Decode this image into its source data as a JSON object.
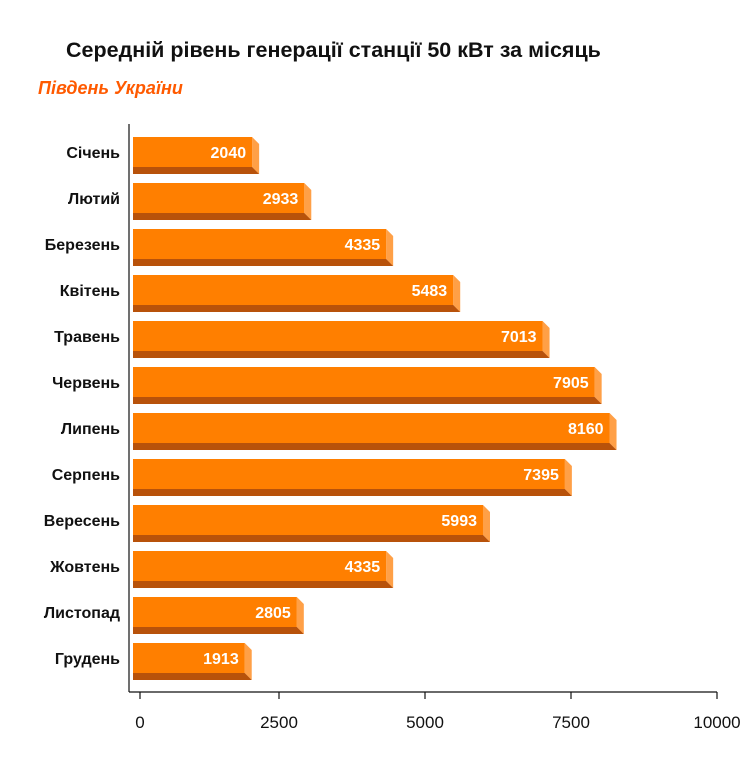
{
  "title": "Середній рівень генерації станції 50 кВт за місяць",
  "subtitle": "Південь України",
  "colors": {
    "subtitle": "#ff5a00",
    "bar_front": "#ff7f00",
    "bar_side": "#ffa047",
    "bar_bottom": "#b8520a",
    "axis": "#111111",
    "text": "#111111",
    "value_text": "#ffffff"
  },
  "chart_data": {
    "type": "bar",
    "orientation": "horizontal",
    "style": "3d",
    "categories": [
      "Січень",
      "Лютий",
      "Березень",
      "Квітень",
      "Травень",
      "Червень",
      "Липень",
      "Серпень",
      "Вересень",
      "Жовтень",
      "Листопад",
      "Грудень"
    ],
    "values": [
      2040,
      2933,
      4335,
      5483,
      7013,
      7905,
      8160,
      7395,
      5993,
      4335,
      2805,
      1913
    ],
    "value_labels": [
      "2040",
      "2933",
      "4335",
      "5483",
      "7013",
      "7905",
      "8160",
      "7395",
      "5993",
      "4335",
      "2805",
      "1913"
    ],
    "xlim": [
      0,
      10000
    ],
    "xticks": [
      0,
      2500,
      5000,
      7500,
      10000
    ],
    "xtick_labels": [
      "0",
      "2500",
      "5000",
      "7500",
      "10000"
    ],
    "xlabel": "",
    "ylabel": "",
    "grid": false,
    "legend": "none"
  }
}
